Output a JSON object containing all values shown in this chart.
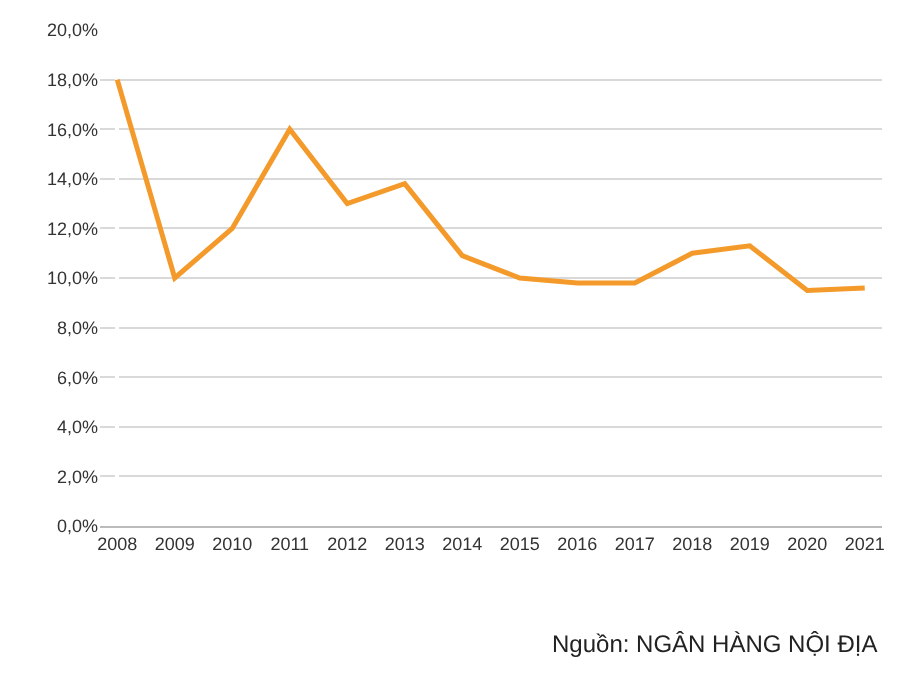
{
  "chart_data": {
    "type": "line",
    "categories": [
      "2008",
      "2009",
      "2010",
      "2011",
      "2012",
      "2013",
      "2014",
      "2015",
      "2016",
      "2017",
      "2018",
      "2019",
      "2020",
      "2021"
    ],
    "series": [
      {
        "color": "#f39a2b",
        "values": [
          18.0,
          10.0,
          12.0,
          16.0,
          13.0,
          13.8,
          10.9,
          10.0,
          9.8,
          9.8,
          11.0,
          11.3,
          9.5,
          9.6
        ]
      }
    ],
    "ylim": [
      0,
      20
    ],
    "yticks": [
      {
        "value": 0,
        "label": "0,0%"
      },
      {
        "value": 2,
        "label": "2,0%"
      },
      {
        "value": 4,
        "label": "4,0%"
      },
      {
        "value": 6,
        "label": "6,0%"
      },
      {
        "value": 8,
        "label": "8,0%"
      },
      {
        "value": 10,
        "label": "10,0%"
      },
      {
        "value": 12,
        "label": "12,0%"
      },
      {
        "value": 14,
        "label": "14,0%"
      },
      {
        "value": 16,
        "label": "16,0%"
      },
      {
        "value": 18,
        "label": "18,0%"
      },
      {
        "value": 20,
        "label": "20,0%"
      }
    ],
    "grid": "y",
    "marker": "none",
    "line_style": "solid",
    "annotations": [
      "Nguồn: NGÂN HÀNG NỘI ĐỊA"
    ]
  }
}
